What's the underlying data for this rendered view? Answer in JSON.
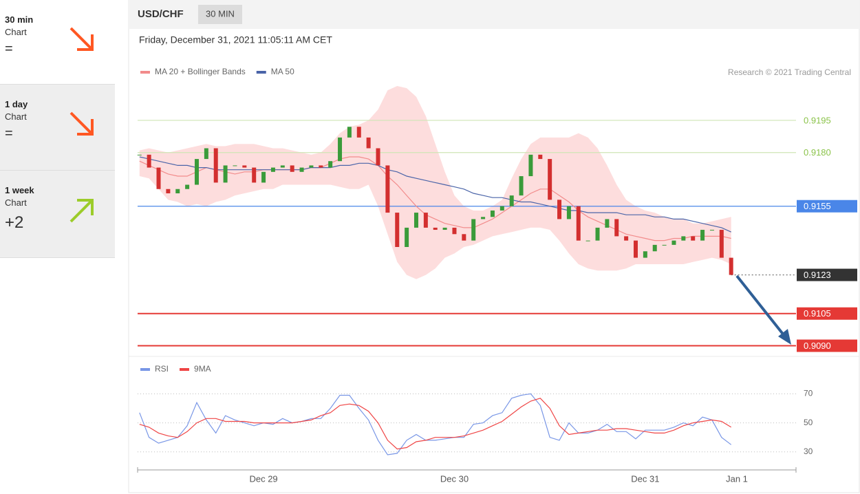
{
  "sidebar": [
    {
      "title": "30 min",
      "subtitle": "Chart",
      "score": "="
    },
    {
      "title": "1 day",
      "subtitle": "Chart",
      "score": "="
    },
    {
      "title": "1 week",
      "subtitle": "Chart",
      "score": "+2"
    }
  ],
  "header": {
    "symbol": "USD/CHF",
    "interval": "30 MIN",
    "datetime": "Friday, December 31, 2021 11:05:11 AM CET",
    "credit": "Research © 2021 Trading Central"
  },
  "chart_data": [
    {
      "type": "candlestick",
      "up_color": "#3a9b3a",
      "down_color": "#d32f2f",
      "x": [
        -0.65,
        -0.6,
        -0.55,
        -0.5,
        -0.45,
        -0.4,
        -0.35,
        -0.3,
        -0.25,
        -0.2,
        -0.15,
        -0.1,
        -0.05,
        0,
        0.05,
        0.1,
        0.15,
        0.2,
        0.25,
        0.3,
        0.35,
        0.4,
        0.45,
        0.5,
        0.55,
        0.6,
        0.65,
        0.7,
        0.75,
        0.8,
        0.85,
        0.9,
        0.95,
        1,
        1.05,
        1.1,
        1.15,
        1.2,
        1.25,
        1.3,
        1.35,
        1.4,
        1.45,
        1.5,
        1.55,
        1.6,
        1.65,
        1.7,
        1.75,
        1.8,
        1.85,
        1.9,
        1.95,
        2,
        2.05,
        2.1,
        2.15,
        2.2,
        2.25,
        2.3,
        2.35,
        2.4,
        2.45
      ],
      "close": [
        0.9179,
        0.9173,
        0.9163,
        0.9161,
        0.9163,
        0.9165,
        0.9177,
        0.9182,
        0.9166,
        0.9174,
        0.9174,
        0.9173,
        0.9166,
        0.9171,
        0.9173,
        0.9174,
        0.9171,
        0.9173,
        0.9174,
        0.9173,
        0.9176,
        0.9187,
        0.9192,
        0.9187,
        0.9182,
        0.9174,
        0.9152,
        0.9136,
        0.9145,
        0.9152,
        0.9145,
        0.9144,
        0.9145,
        0.9142,
        0.9139,
        0.9149,
        0.915,
        0.9153,
        0.9155,
        0.916,
        0.9169,
        0.9179,
        0.9177,
        0.9158,
        0.9149,
        0.9155,
        0.9139,
        0.9139,
        0.9145,
        0.9149,
        0.9141,
        0.9139,
        0.9131,
        0.9134,
        0.9137,
        0.9137,
        0.9139,
        0.9141,
        0.9139,
        0.9144,
        0.9144,
        0.9131,
        0.9123
      ],
      "series": [
        {
          "name": "MA 20 + Bollinger Bands",
          "color": "#f28b8b",
          "band_color": "#fdd5d5",
          "values": [
            0.9176,
            0.9174,
            0.9172,
            0.917,
            0.9169,
            0.9169,
            0.9171,
            0.9173,
            0.9172,
            0.9171,
            0.917,
            0.9171,
            0.9171,
            0.9172,
            0.9172,
            0.9172,
            0.9172,
            0.9172,
            0.9173,
            0.9173,
            0.9175,
            0.9177,
            0.9178,
            0.9178,
            0.9177,
            0.9174,
            0.9169,
            0.9165,
            0.916,
            0.9155,
            0.9151,
            0.9149,
            0.9147,
            0.9146,
            0.9145,
            0.9145,
            0.9147,
            0.9149,
            0.9152,
            0.9155,
            0.9158,
            0.9161,
            0.9163,
            0.9163,
            0.916,
            0.9157,
            0.9153,
            0.915,
            0.9148,
            0.9146,
            0.9144,
            0.9142,
            0.9141,
            0.914,
            0.9139,
            0.9139,
            0.914,
            0.914,
            0.9141,
            0.9141,
            0.9141,
            0.9141,
            0.914
          ],
          "upper": [
            0.9181,
            0.9182,
            0.9181,
            0.918,
            0.9181,
            0.9182,
            0.9183,
            0.9184,
            0.9183,
            0.9183,
            0.9184,
            0.9184,
            0.9184,
            0.9183,
            0.9182,
            0.9182,
            0.9181,
            0.918,
            0.9179,
            0.918,
            0.9184,
            0.9189,
            0.9192,
            0.9193,
            0.9195,
            0.92,
            0.9209,
            0.9211,
            0.921,
            0.9206,
            0.9197,
            0.9184,
            0.9171,
            0.916,
            0.9155,
            0.9153,
            0.9153,
            0.9155,
            0.9158,
            0.9168,
            0.9177,
            0.9184,
            0.9187,
            0.9187,
            0.9187,
            0.9187,
            0.9189,
            0.9187,
            0.9182,
            0.9174,
            0.9165,
            0.9158,
            0.9155,
            0.9153,
            0.9152,
            0.915,
            0.9149,
            0.9149,
            0.9147,
            0.9147,
            0.9148,
            0.9149,
            0.915
          ],
          "lower": [
            0.9169,
            0.9168,
            0.9163,
            0.9158,
            0.9157,
            0.9155,
            0.9156,
            0.9155,
            0.9157,
            0.9158,
            0.916,
            0.9161,
            0.9162,
            0.9163,
            0.9163,
            0.9165,
            0.9165,
            0.9165,
            0.9165,
            0.9165,
            0.9165,
            0.9164,
            0.9163,
            0.9163,
            0.9165,
            0.9155,
            0.9142,
            0.9129,
            0.9123,
            0.9121,
            0.9123,
            0.9126,
            0.9131,
            0.9133,
            0.9136,
            0.9137,
            0.9139,
            0.9141,
            0.9142,
            0.9143,
            0.9144,
            0.9145,
            0.9145,
            0.9144,
            0.9139,
            0.9133,
            0.9128,
            0.9126,
            0.9125,
            0.9125,
            0.9125,
            0.9126,
            0.9128,
            0.9128,
            0.9128,
            0.9128,
            0.9128,
            0.9128,
            0.9129,
            0.913,
            0.9131,
            0.913,
            0.9128
          ]
        },
        {
          "name": "MA 50",
          "color": "#4a64a8",
          "values": [
            0.9178,
            0.9177,
            0.9176,
            0.9175,
            0.9174,
            0.9174,
            0.9173,
            0.9173,
            0.9172,
            0.9172,
            0.9172,
            0.9172,
            0.9172,
            0.9172,
            0.9172,
            0.9172,
            0.9172,
            0.9172,
            0.9173,
            0.9173,
            0.9173,
            0.9174,
            0.9174,
            0.9175,
            0.9175,
            0.9174,
            0.9172,
            0.9171,
            0.9169,
            0.9168,
            0.9167,
            0.9166,
            0.9165,
            0.9164,
            0.9163,
            0.9161,
            0.916,
            0.9159,
            0.9159,
            0.9158,
            0.9157,
            0.9157,
            0.9156,
            0.9155,
            0.9154,
            0.9153,
            0.9153,
            0.9152,
            0.9152,
            0.9152,
            0.9152,
            0.9151,
            0.9151,
            0.9151,
            0.915,
            0.915,
            0.9149,
            0.9149,
            0.9148,
            0.9147,
            0.9146,
            0.9145,
            0.9143
          ]
        }
      ],
      "ylim": [
        0.9086,
        0.9211
      ],
      "xlim": [
        -0.66,
        2.79
      ],
      "levels": [
        {
          "value": 0.9195,
          "color": "#8bc34a",
          "line": "#cfe5b5",
          "boxed": false
        },
        {
          "value": 0.918,
          "label": "0.9180",
          "color": "#8bc34a",
          "line": "#cfe5b5",
          "boxed": false
        },
        {
          "value": 0.9155,
          "color": "#4a86e8",
          "line": "#4a86e8",
          "boxed": true
        },
        {
          "value": 0.9123,
          "color": "#333333",
          "line": "#666666",
          "boxed": true,
          "dotted": true
        },
        {
          "value": 0.9105,
          "color": "#e53935",
          "line": "#e53935",
          "boxed": true
        },
        {
          "value": 0.909,
          "label": "0.9090",
          "color": "#e53935",
          "line": "#e53935",
          "boxed": true
        }
      ]
    },
    {
      "type": "line",
      "ylim": [
        19,
        83
      ],
      "yticks": [
        30,
        50,
        70
      ],
      "xticks": [
        {
          "value": 0,
          "label": "Dec 29"
        },
        {
          "value": 1,
          "label": "Dec 30"
        },
        {
          "value": 2,
          "label": "Dec 31"
        },
        {
          "value": 2.48,
          "label": "Jan 1"
        }
      ],
      "series": [
        {
          "name": "RSI",
          "color": "#7896e6",
          "values": [
            57,
            40,
            36,
            38,
            40,
            48,
            64,
            52,
            43,
            55,
            52,
            50,
            48,
            50,
            49,
            53,
            50,
            51,
            53,
            53,
            60,
            69,
            69,
            60,
            52,
            38,
            28,
            29,
            38,
            42,
            38,
            38,
            39,
            40,
            40,
            49,
            50,
            55,
            57,
            67,
            69,
            70,
            62,
            40,
            38,
            50,
            43,
            43,
            45,
            49,
            44,
            44,
            39,
            45,
            45,
            45,
            47,
            50,
            48,
            54,
            52,
            40,
            35
          ]
        },
        {
          "name": "9MA",
          "color": "#ef4444",
          "values": [
            49,
            47,
            43,
            41,
            40,
            44,
            50,
            53,
            53,
            51,
            51,
            51,
            50,
            50,
            50,
            50,
            50,
            51,
            52,
            55,
            57,
            62,
            63,
            62,
            58,
            50,
            38,
            32,
            33,
            37,
            38,
            40,
            40,
            40,
            41,
            43,
            45,
            48,
            51,
            56,
            61,
            65,
            67,
            60,
            48,
            42,
            43,
            44,
            45,
            45,
            46,
            46,
            45,
            44,
            43,
            43,
            45,
            48,
            50,
            51,
            52,
            51,
            47
          ]
        }
      ]
    }
  ]
}
